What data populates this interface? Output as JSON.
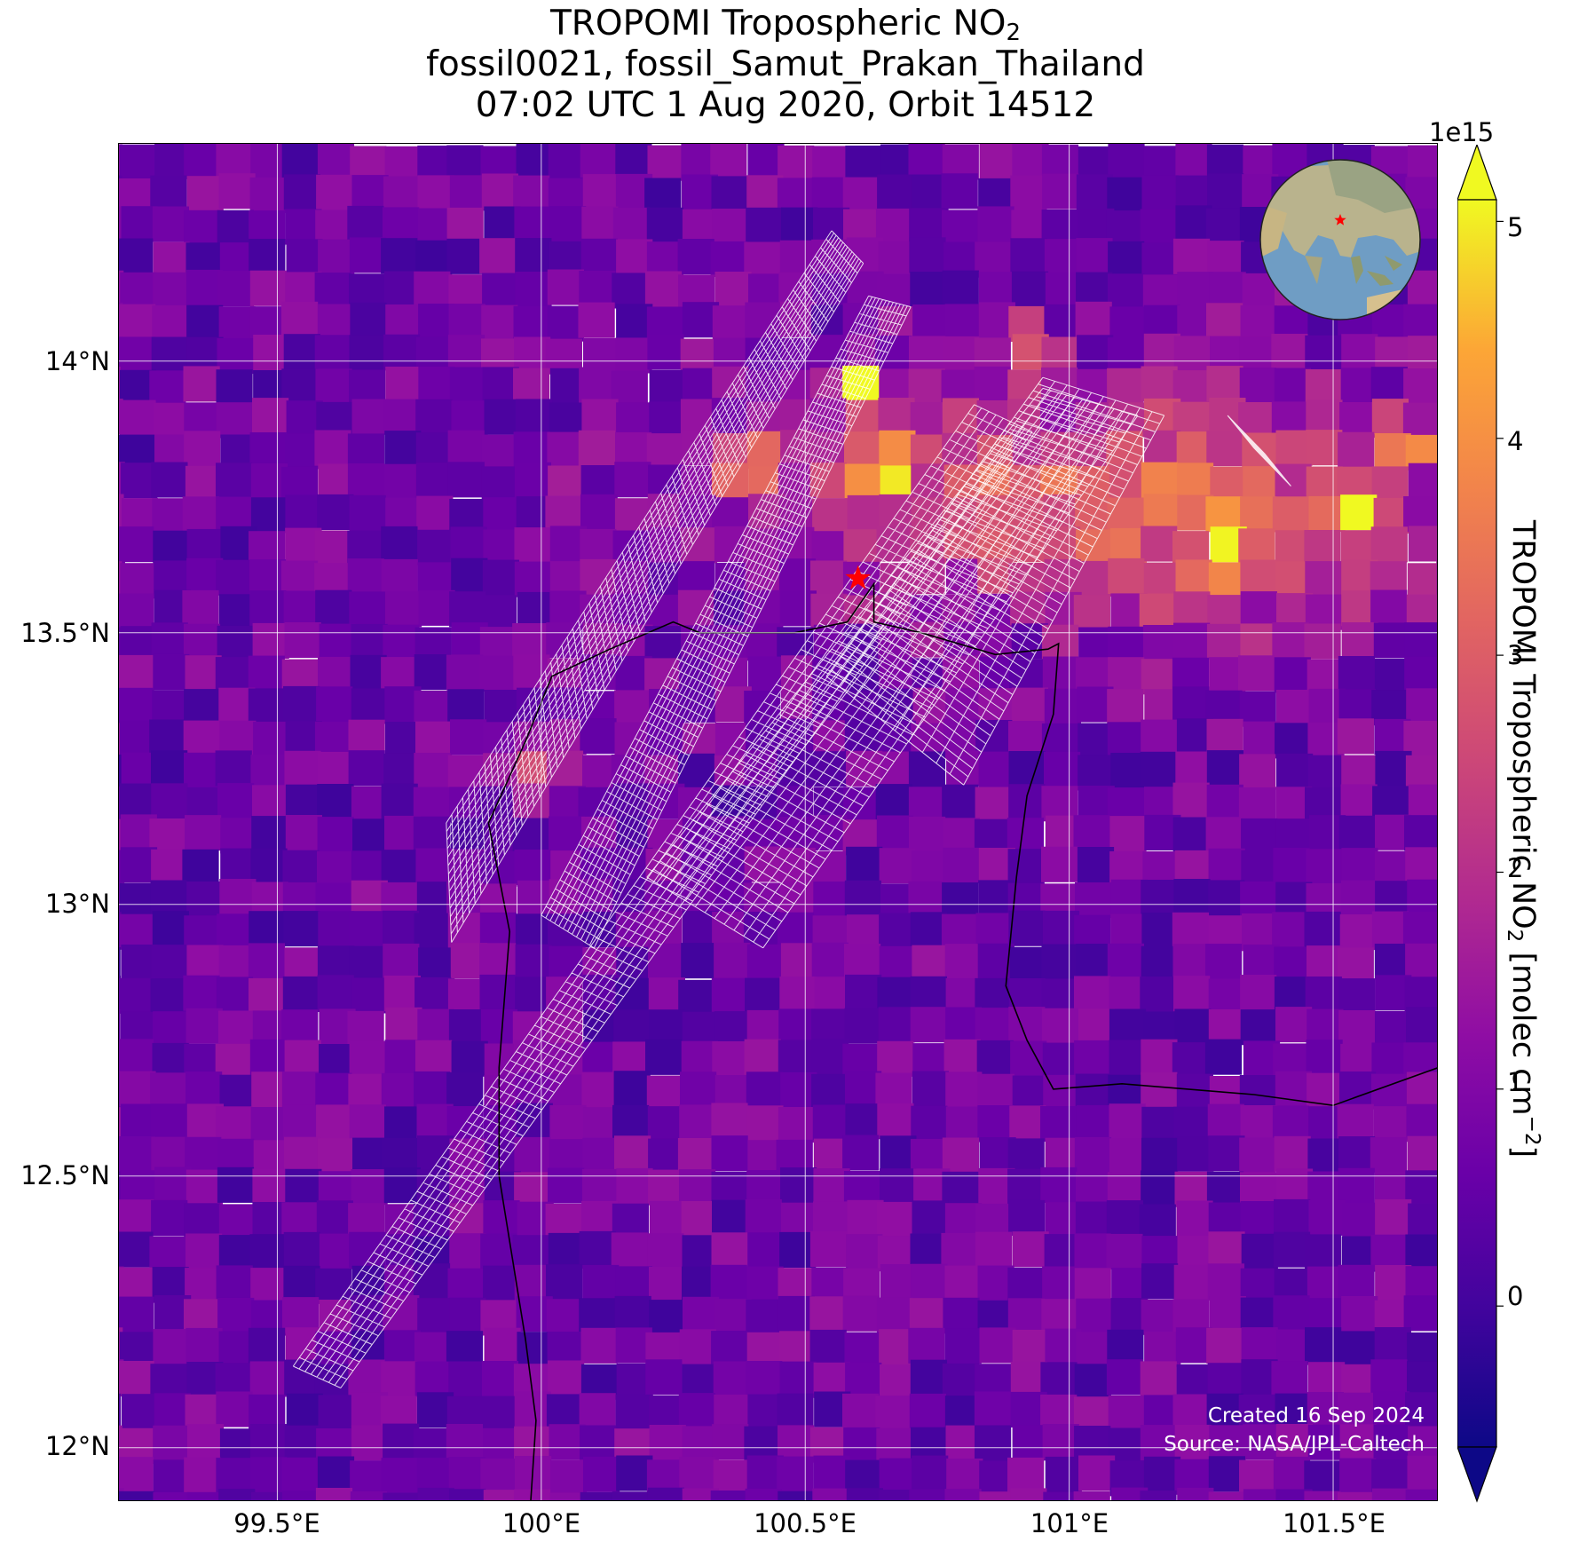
{
  "title": {
    "line1_prefix": "TROPOMI Tropospheric NO",
    "line1_sub": "2",
    "line2": "fossil0021, fossil_Samut_Prakan_Thailand",
    "line3": "07:02 UTC 1 Aug 2020, Orbit 14512"
  },
  "axes": {
    "lat_ticks": [
      "14°N",
      "13.5°N",
      "13°N",
      "12.5°N",
      "12°N"
    ],
    "lon_ticks": [
      "99.5°E",
      "100°E",
      "100.5°E",
      "101°E",
      "101.5°E"
    ]
  },
  "colorbar": {
    "exponent": "1e15",
    "ticks": [
      "5",
      "4",
      "3",
      "2",
      "1",
      "0"
    ],
    "label_prefix": "TROPOMI Tropospheric NO",
    "label_sub": "2",
    "label_mid": " [molec cm",
    "label_sup": "−2",
    "label_end": "]",
    "colormap": "plasma",
    "range": [
      -0.65,
      5.1
    ],
    "extend": "both"
  },
  "credits": {
    "created": "Created 16 Sep 2024",
    "source": "Source: NASA/JPL-Caltech"
  },
  "chart_data": {
    "type": "heatmap",
    "variable": "Tropospheric NO2 column",
    "units": "molec cm^-2",
    "scale": "1e15",
    "lon_range": [
      99.2,
      101.7
    ],
    "lat_range": [
      11.9,
      14.4
    ],
    "grid": true,
    "target": {
      "name": "fossil_Samut_Prakan_Thailand",
      "lon": 100.6,
      "lat": 13.6,
      "marker": "red star"
    },
    "background_level": 0.7,
    "plume": {
      "direction": "NE of target",
      "peak_value": 5.0,
      "hotspots": [
        {
          "lon": 100.6,
          "lat": 13.95,
          "value": 5.0
        },
        {
          "lon": 100.65,
          "lat": 13.8,
          "value": 4.8
        },
        {
          "lon": 101.55,
          "lat": 13.73,
          "value": 4.6
        },
        {
          "lon": 101.65,
          "lat": 13.85,
          "value": 4.1
        },
        {
          "lon": 99.97,
          "lat": 13.25,
          "value": 4.0
        },
        {
          "lon": 100.4,
          "lat": 13.8,
          "value": 3.6
        },
        {
          "lon": 100.92,
          "lat": 14.03,
          "value": 3.6
        },
        {
          "lon": 101.3,
          "lat": 13.65,
          "value": 3.4
        }
      ]
    },
    "colors": {
      "star": "#ff0000",
      "gridline": "#ffffff",
      "coastline": "#000000",
      "swath_outline": "#ffffff"
    }
  }
}
